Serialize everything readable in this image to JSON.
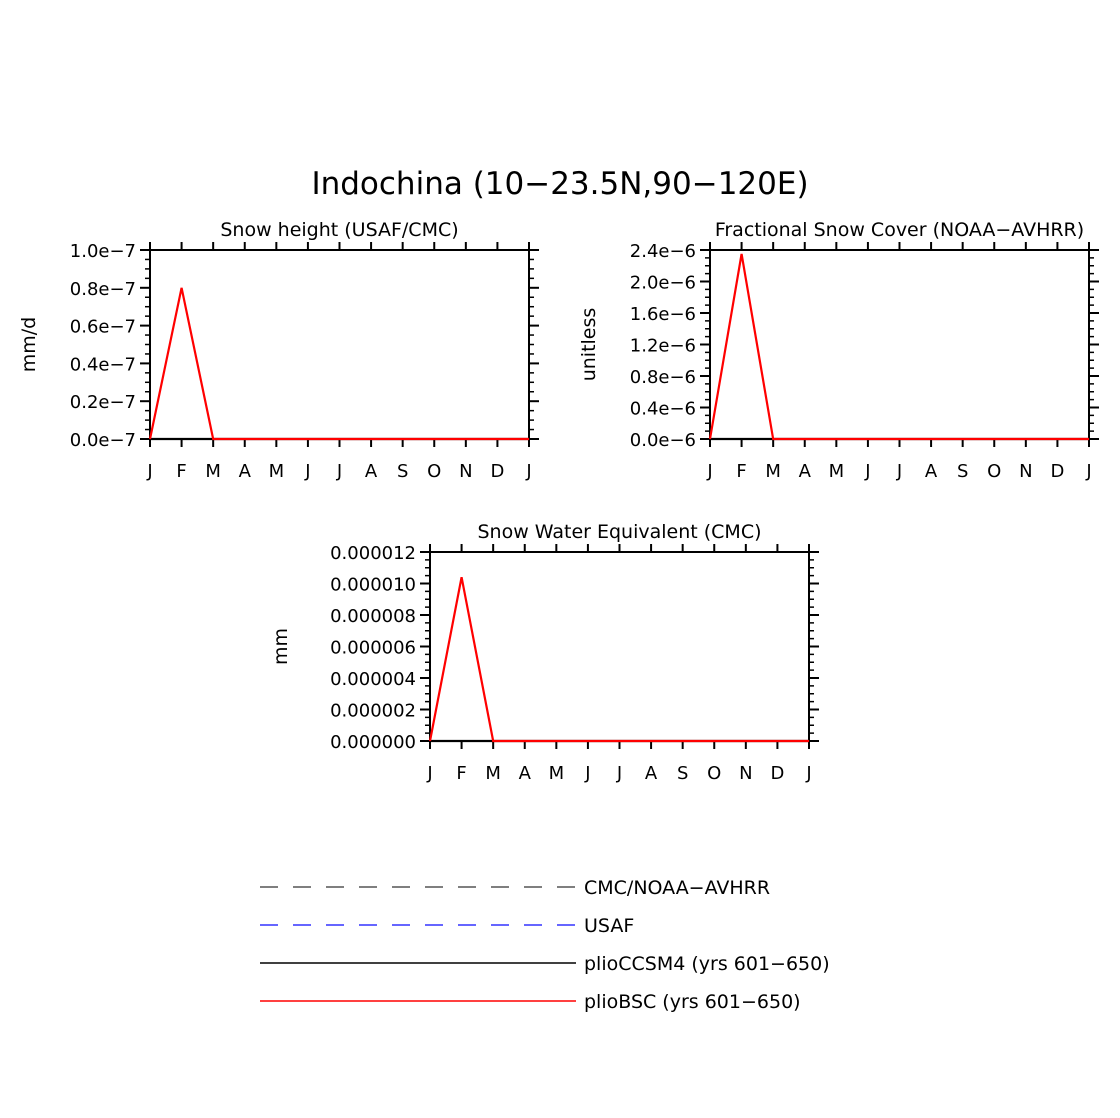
{
  "figure": {
    "title": "Indochina (10−23.5N,90−120E)"
  },
  "months": [
    "J",
    "F",
    "M",
    "A",
    "M",
    "J",
    "J",
    "A",
    "S",
    "O",
    "N",
    "D",
    "J"
  ],
  "colors": {
    "cmc": "#555555",
    "usaf": "#3333ff",
    "pliocesm4": "#000000",
    "pliobsc": "#ff0000"
  },
  "legend": {
    "items": [
      {
        "key": "cmc",
        "label": "CMC/NOAA−AVHRR",
        "dashed": true
      },
      {
        "key": "usaf",
        "label": "USAF",
        "dashed": true
      },
      {
        "key": "pliocesm4",
        "label": "plioCCSM4 (yrs 601−650)",
        "dashed": false
      },
      {
        "key": "pliobsc",
        "label": "plioBSC (yrs 601−650)",
        "dashed": false
      }
    ]
  },
  "chart_data": [
    {
      "type": "line",
      "title": "Snow height (USAF/CMC)",
      "xlabel": "",
      "ylabel": "mm/d",
      "ylim": [
        0,
        1e-07
      ],
      "yticks": [
        0,
        2e-08,
        4e-08,
        6e-08,
        8e-08,
        1e-07
      ],
      "ytick_labels": [
        "0.0e−7",
        "0.2e−7",
        "0.4e−7",
        "0.6e−7",
        "0.8e−7",
        "1.0e−7"
      ],
      "categories": [
        "J",
        "F",
        "M",
        "A",
        "M",
        "J",
        "J",
        "A",
        "S",
        "O",
        "N",
        "D",
        "J"
      ],
      "series": [
        {
          "name": "plioCCSM4 (yrs 601−650)",
          "key": "pliocesm4",
          "values": [
            0,
            0,
            0,
            0,
            0,
            0,
            0,
            0,
            0,
            0,
            0,
            0,
            0
          ]
        },
        {
          "name": "plioBSC (yrs 601−650)",
          "key": "pliobsc",
          "values": [
            0,
            8e-08,
            0,
            0,
            0,
            0,
            0,
            0,
            0,
            0,
            0,
            0,
            0
          ]
        }
      ]
    },
    {
      "type": "line",
      "title": "Fractional Snow Cover (NOAA−AVHRR)",
      "xlabel": "",
      "ylabel": "unitless",
      "ylim": [
        0,
        2.4e-06
      ],
      "yticks": [
        0,
        4e-07,
        8e-07,
        1.2e-06,
        1.6e-06,
        2e-06,
        2.4e-06
      ],
      "ytick_labels": [
        "0.0e−6",
        "0.4e−6",
        "0.8e−6",
        "1.2e−6",
        "1.6e−6",
        "2.0e−6",
        "2.4e−6"
      ],
      "categories": [
        "J",
        "F",
        "M",
        "A",
        "M",
        "J",
        "J",
        "A",
        "S",
        "O",
        "N",
        "D",
        "J"
      ],
      "series": [
        {
          "name": "plioCCSM4 (yrs 601−650)",
          "key": "pliocesm4",
          "values": [
            0,
            0,
            0,
            0,
            0,
            0,
            0,
            0,
            0,
            0,
            0,
            0,
            0
          ]
        },
        {
          "name": "plioBSC (yrs 601−650)",
          "key": "pliobsc",
          "values": [
            0,
            2.35e-06,
            0,
            0,
            0,
            0,
            0,
            0,
            0,
            0,
            0,
            0,
            0
          ]
        }
      ]
    },
    {
      "type": "line",
      "title": "Snow Water Equivalent (CMC)",
      "xlabel": "",
      "ylabel": "mm",
      "ylim": [
        0,
        1.2e-05
      ],
      "yticks": [
        0,
        2e-06,
        4e-06,
        6e-06,
        8e-06,
        1e-05,
        1.2e-05
      ],
      "ytick_labels": [
        "0.000000",
        "0.000002",
        "0.000004",
        "0.000006",
        "0.000008",
        "0.000010",
        "0.000012"
      ],
      "categories": [
        "J",
        "F",
        "M",
        "A",
        "M",
        "J",
        "J",
        "A",
        "S",
        "O",
        "N",
        "D",
        "J"
      ],
      "series": [
        {
          "name": "plioCCSM4 (yrs 601−650)",
          "key": "pliocesm4",
          "values": [
            0,
            0,
            0,
            0,
            0,
            0,
            0,
            0,
            0,
            0,
            0,
            0,
            0
          ]
        },
        {
          "name": "plioBSC (yrs 601−650)",
          "key": "pliobsc",
          "values": [
            0,
            1.04e-05,
            0,
            0,
            0,
            0,
            0,
            0,
            0,
            0,
            0,
            0,
            0
          ]
        }
      ]
    }
  ]
}
